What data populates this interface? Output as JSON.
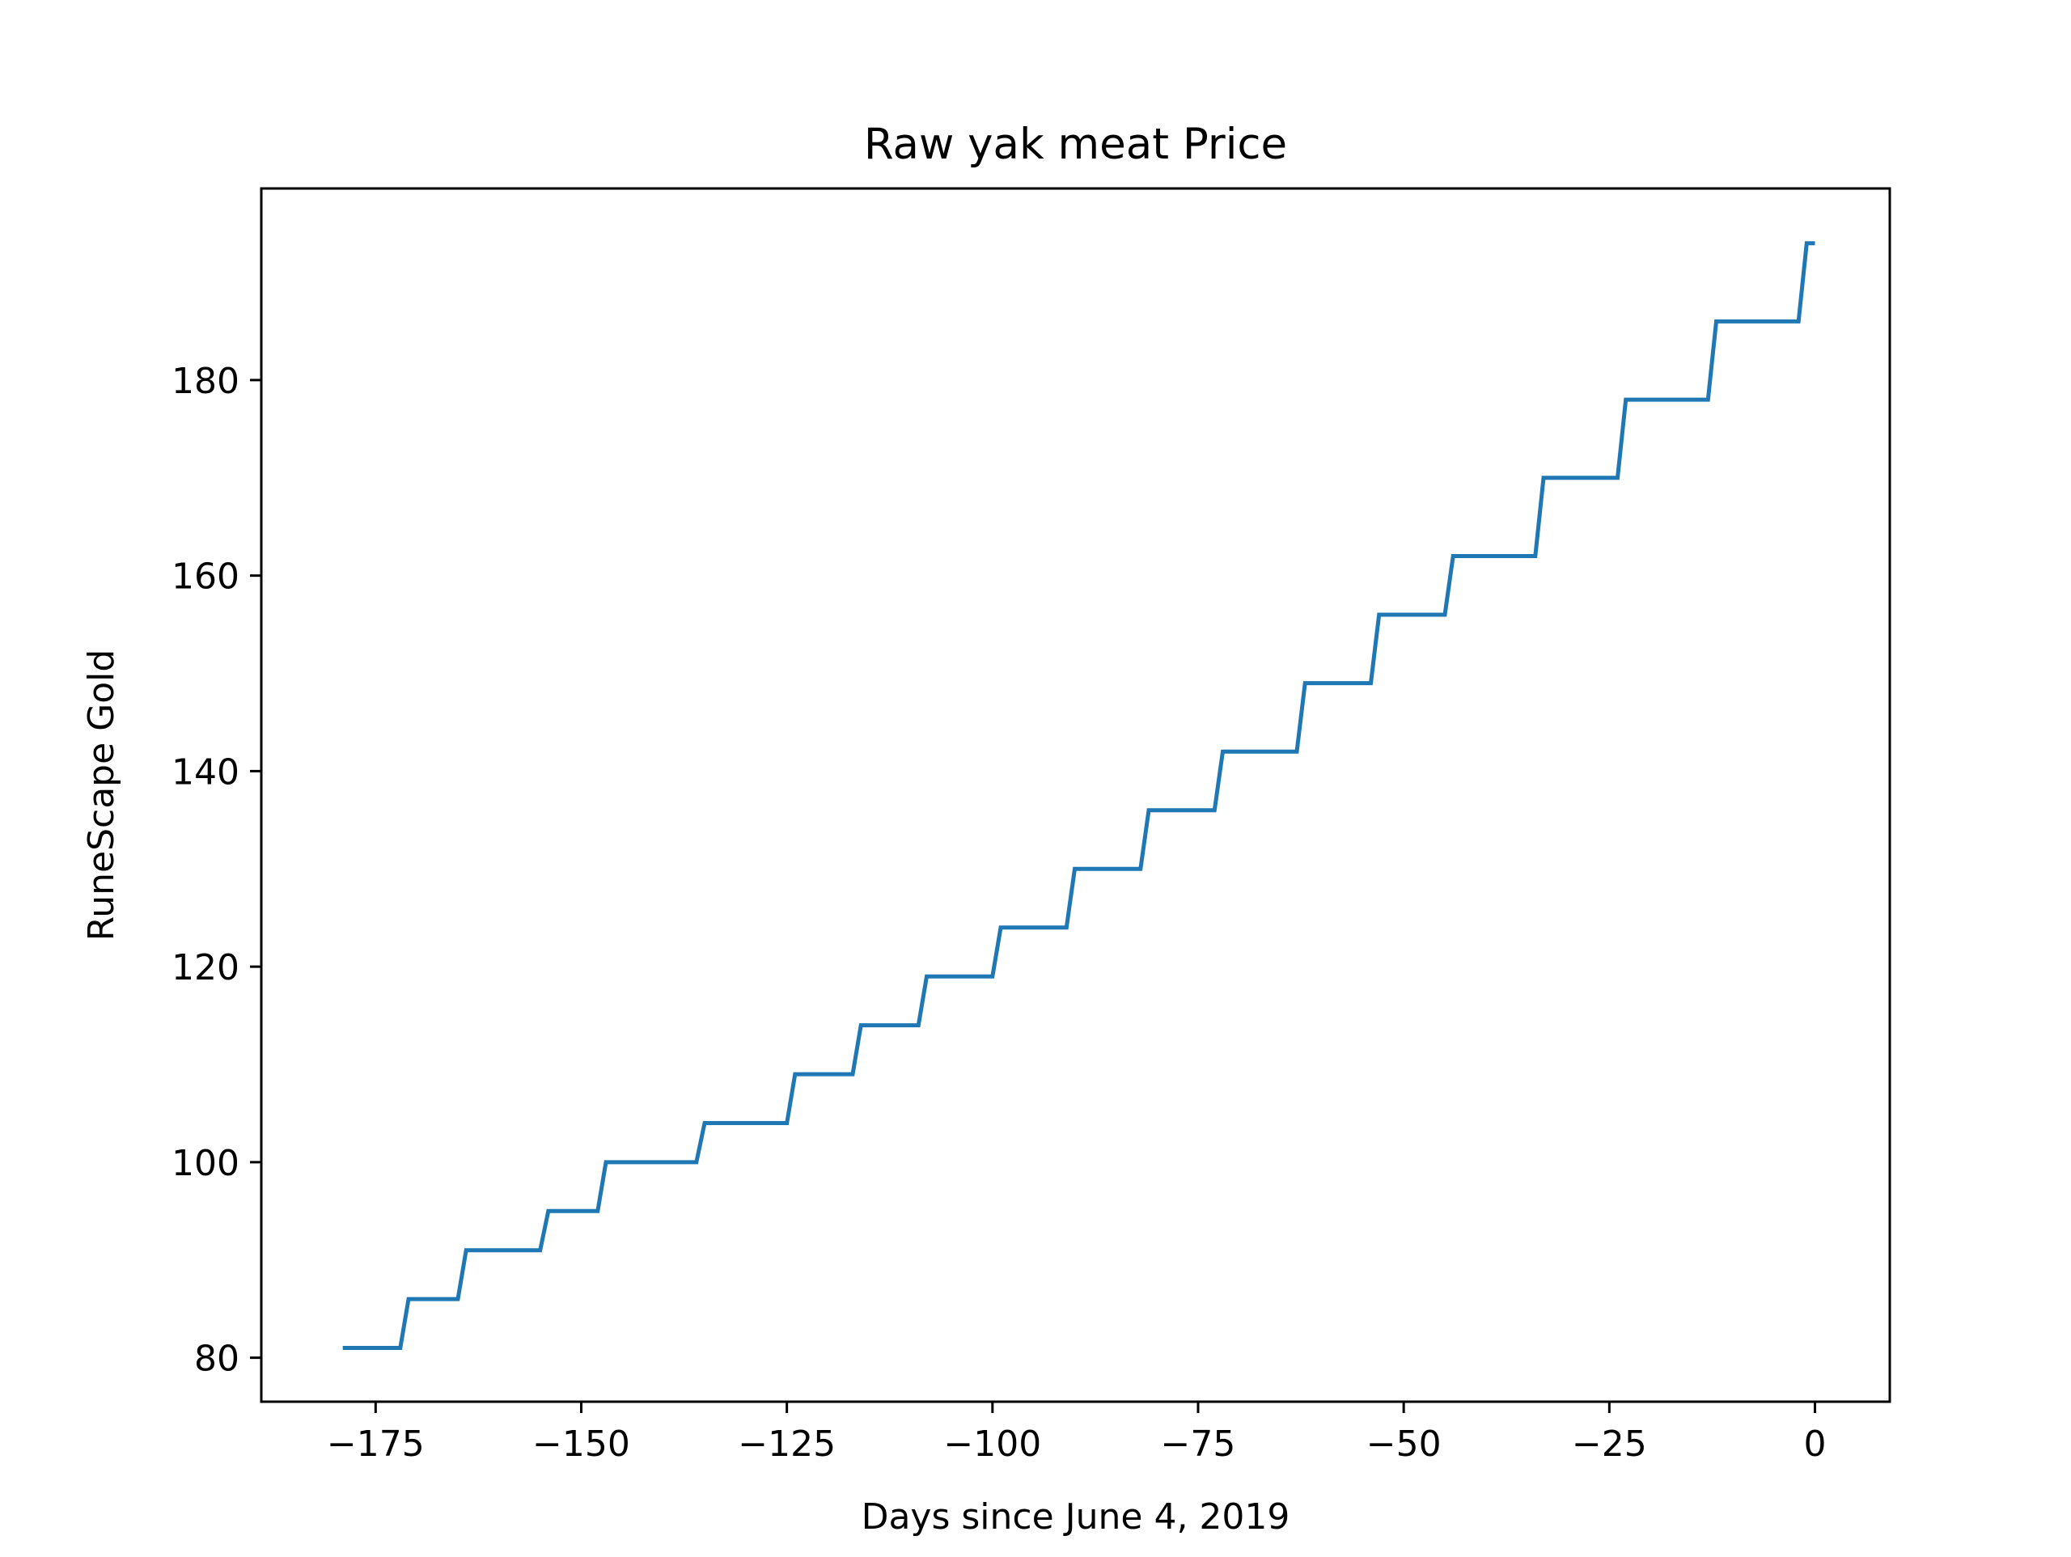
{
  "chart_data": {
    "type": "line",
    "title": "Raw yak meat Price",
    "xlabel": "Days since June 4, 2019",
    "ylabel": "RuneScape Gold",
    "xlim": [
      -188.9,
      9.1
    ],
    "ylim": [
      75.5,
      199.6
    ],
    "x_ticks": [
      -175,
      -150,
      -125,
      -100,
      -75,
      -50,
      -25,
      0
    ],
    "x_tick_labels": [
      "−175",
      "−150",
      "−125",
      "−100",
      "−75",
      "−50",
      "−25",
      "0"
    ],
    "y_ticks": [
      80,
      100,
      120,
      140,
      160,
      180
    ],
    "y_tick_labels": [
      "80",
      "100",
      "120",
      "140",
      "160",
      "180"
    ],
    "grid": false,
    "series": [
      {
        "color": "#1f77b4",
        "x": [
          -179,
          -172,
          -171,
          -165,
          -164,
          -155,
          -154,
          -148,
          -147,
          -136,
          -135,
          -125,
          -124,
          -117,
          -116,
          -109,
          -108,
          -100,
          -99,
          -91,
          -90,
          -82,
          -81,
          -73,
          -72,
          -63,
          -62,
          -54,
          -53,
          -45,
          -44,
          -34,
          -33,
          -24,
          -23,
          -13,
          -12,
          -2,
          -1,
          0
        ],
        "y": [
          81,
          81,
          86,
          86,
          91,
          91,
          95,
          95,
          100,
          100,
          104,
          104,
          109,
          109,
          114,
          114,
          119,
          119,
          124,
          124,
          130,
          130,
          136,
          136,
          142,
          142,
          149,
          149,
          156,
          156,
          162,
          162,
          170,
          170,
          178,
          178,
          186,
          186,
          194,
          194
        ]
      }
    ]
  }
}
